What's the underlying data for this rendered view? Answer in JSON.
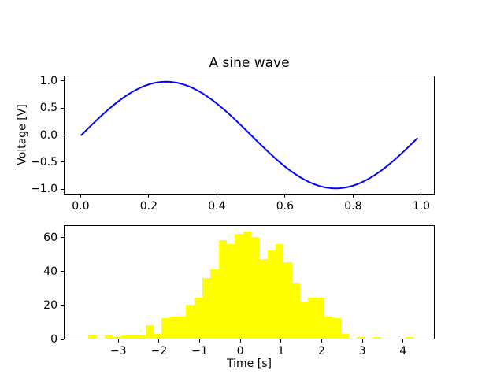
{
  "figure": {
    "background": "#ffffff",
    "title": "A sine wave"
  },
  "chart_data": [
    {
      "type": "line",
      "title": "A sine wave",
      "xlabel": "",
      "ylabel": "Voltage [V]",
      "series": [
        {
          "name": "sine-wave",
          "formula": "sin(2*pi*t)",
          "t_start": 0.0,
          "t_stop": 0.99,
          "n_points": 100,
          "color": "#0000ff",
          "line_width": 2
        }
      ],
      "xlim": [
        -0.0495,
        1.0395
      ],
      "ylim": [
        -1.1,
        1.1
      ],
      "xticks": {
        "values": [
          0.0,
          0.2,
          0.4,
          0.6,
          0.8,
          1.0
        ],
        "labels": [
          "0.0",
          "0.2",
          "0.4",
          "0.6",
          "0.8",
          "1.0"
        ]
      },
      "yticks": {
        "values": [
          1.0,
          0.5,
          0.0,
          -0.5,
          -1.0
        ],
        "labels": [
          "1.0",
          "0.5",
          "0.0",
          "−0.5",
          "−1.0"
        ]
      },
      "grid": false,
      "legend": null
    },
    {
      "type": "bar",
      "title": "",
      "xlabel": "Time [s]",
      "ylabel": "",
      "bar_color": "#ffff00",
      "bin_width": 0.2,
      "bars": [
        {
          "x0": -3.75,
          "count": 2
        },
        {
          "x0": -3.35,
          "count": 2
        },
        {
          "x0": -3.15,
          "count": 1
        },
        {
          "x0": -2.95,
          "count": 2
        },
        {
          "x0": -2.75,
          "count": 2
        },
        {
          "x0": -2.55,
          "count": 2
        },
        {
          "x0": -2.35,
          "count": 8
        },
        {
          "x0": -2.15,
          "count": 3
        },
        {
          "x0": -1.95,
          "count": 12
        },
        {
          "x0": -1.75,
          "count": 13
        },
        {
          "x0": -1.55,
          "count": 13
        },
        {
          "x0": -1.35,
          "count": 20
        },
        {
          "x0": -1.15,
          "count": 24
        },
        {
          "x0": -0.95,
          "count": 36
        },
        {
          "x0": -0.75,
          "count": 41
        },
        {
          "x0": -0.55,
          "count": 58
        },
        {
          "x0": -0.35,
          "count": 56
        },
        {
          "x0": -0.15,
          "count": 62
        },
        {
          "x0": 0.05,
          "count": 63
        },
        {
          "x0": 0.25,
          "count": 60
        },
        {
          "x0": 0.45,
          "count": 47
        },
        {
          "x0": 0.65,
          "count": 52
        },
        {
          "x0": 0.85,
          "count": 56
        },
        {
          "x0": 1.05,
          "count": 45
        },
        {
          "x0": 1.25,
          "count": 33
        },
        {
          "x0": 1.45,
          "count": 22
        },
        {
          "x0": 1.65,
          "count": 24
        },
        {
          "x0": 1.85,
          "count": 24
        },
        {
          "x0": 2.05,
          "count": 13
        },
        {
          "x0": 2.25,
          "count": 12
        },
        {
          "x0": 2.45,
          "count": 3
        },
        {
          "x0": 2.85,
          "count": 1
        },
        {
          "x0": 3.25,
          "count": 1
        },
        {
          "x0": 4.05,
          "count": 1
        }
      ],
      "xlim": [
        -4.34,
        4.78
      ],
      "ylim": [
        0,
        67.4
      ],
      "xticks": {
        "values": [
          -3,
          -2,
          -1,
          0,
          1,
          2,
          3,
          4
        ],
        "labels": [
          "−3",
          "−2",
          "−1",
          "0",
          "1",
          "2",
          "3",
          "4"
        ]
      },
      "yticks": {
        "values": [
          0,
          20,
          40,
          60
        ],
        "labels": [
          "0",
          "20",
          "40",
          "60"
        ]
      },
      "grid": false,
      "legend": null
    }
  ]
}
